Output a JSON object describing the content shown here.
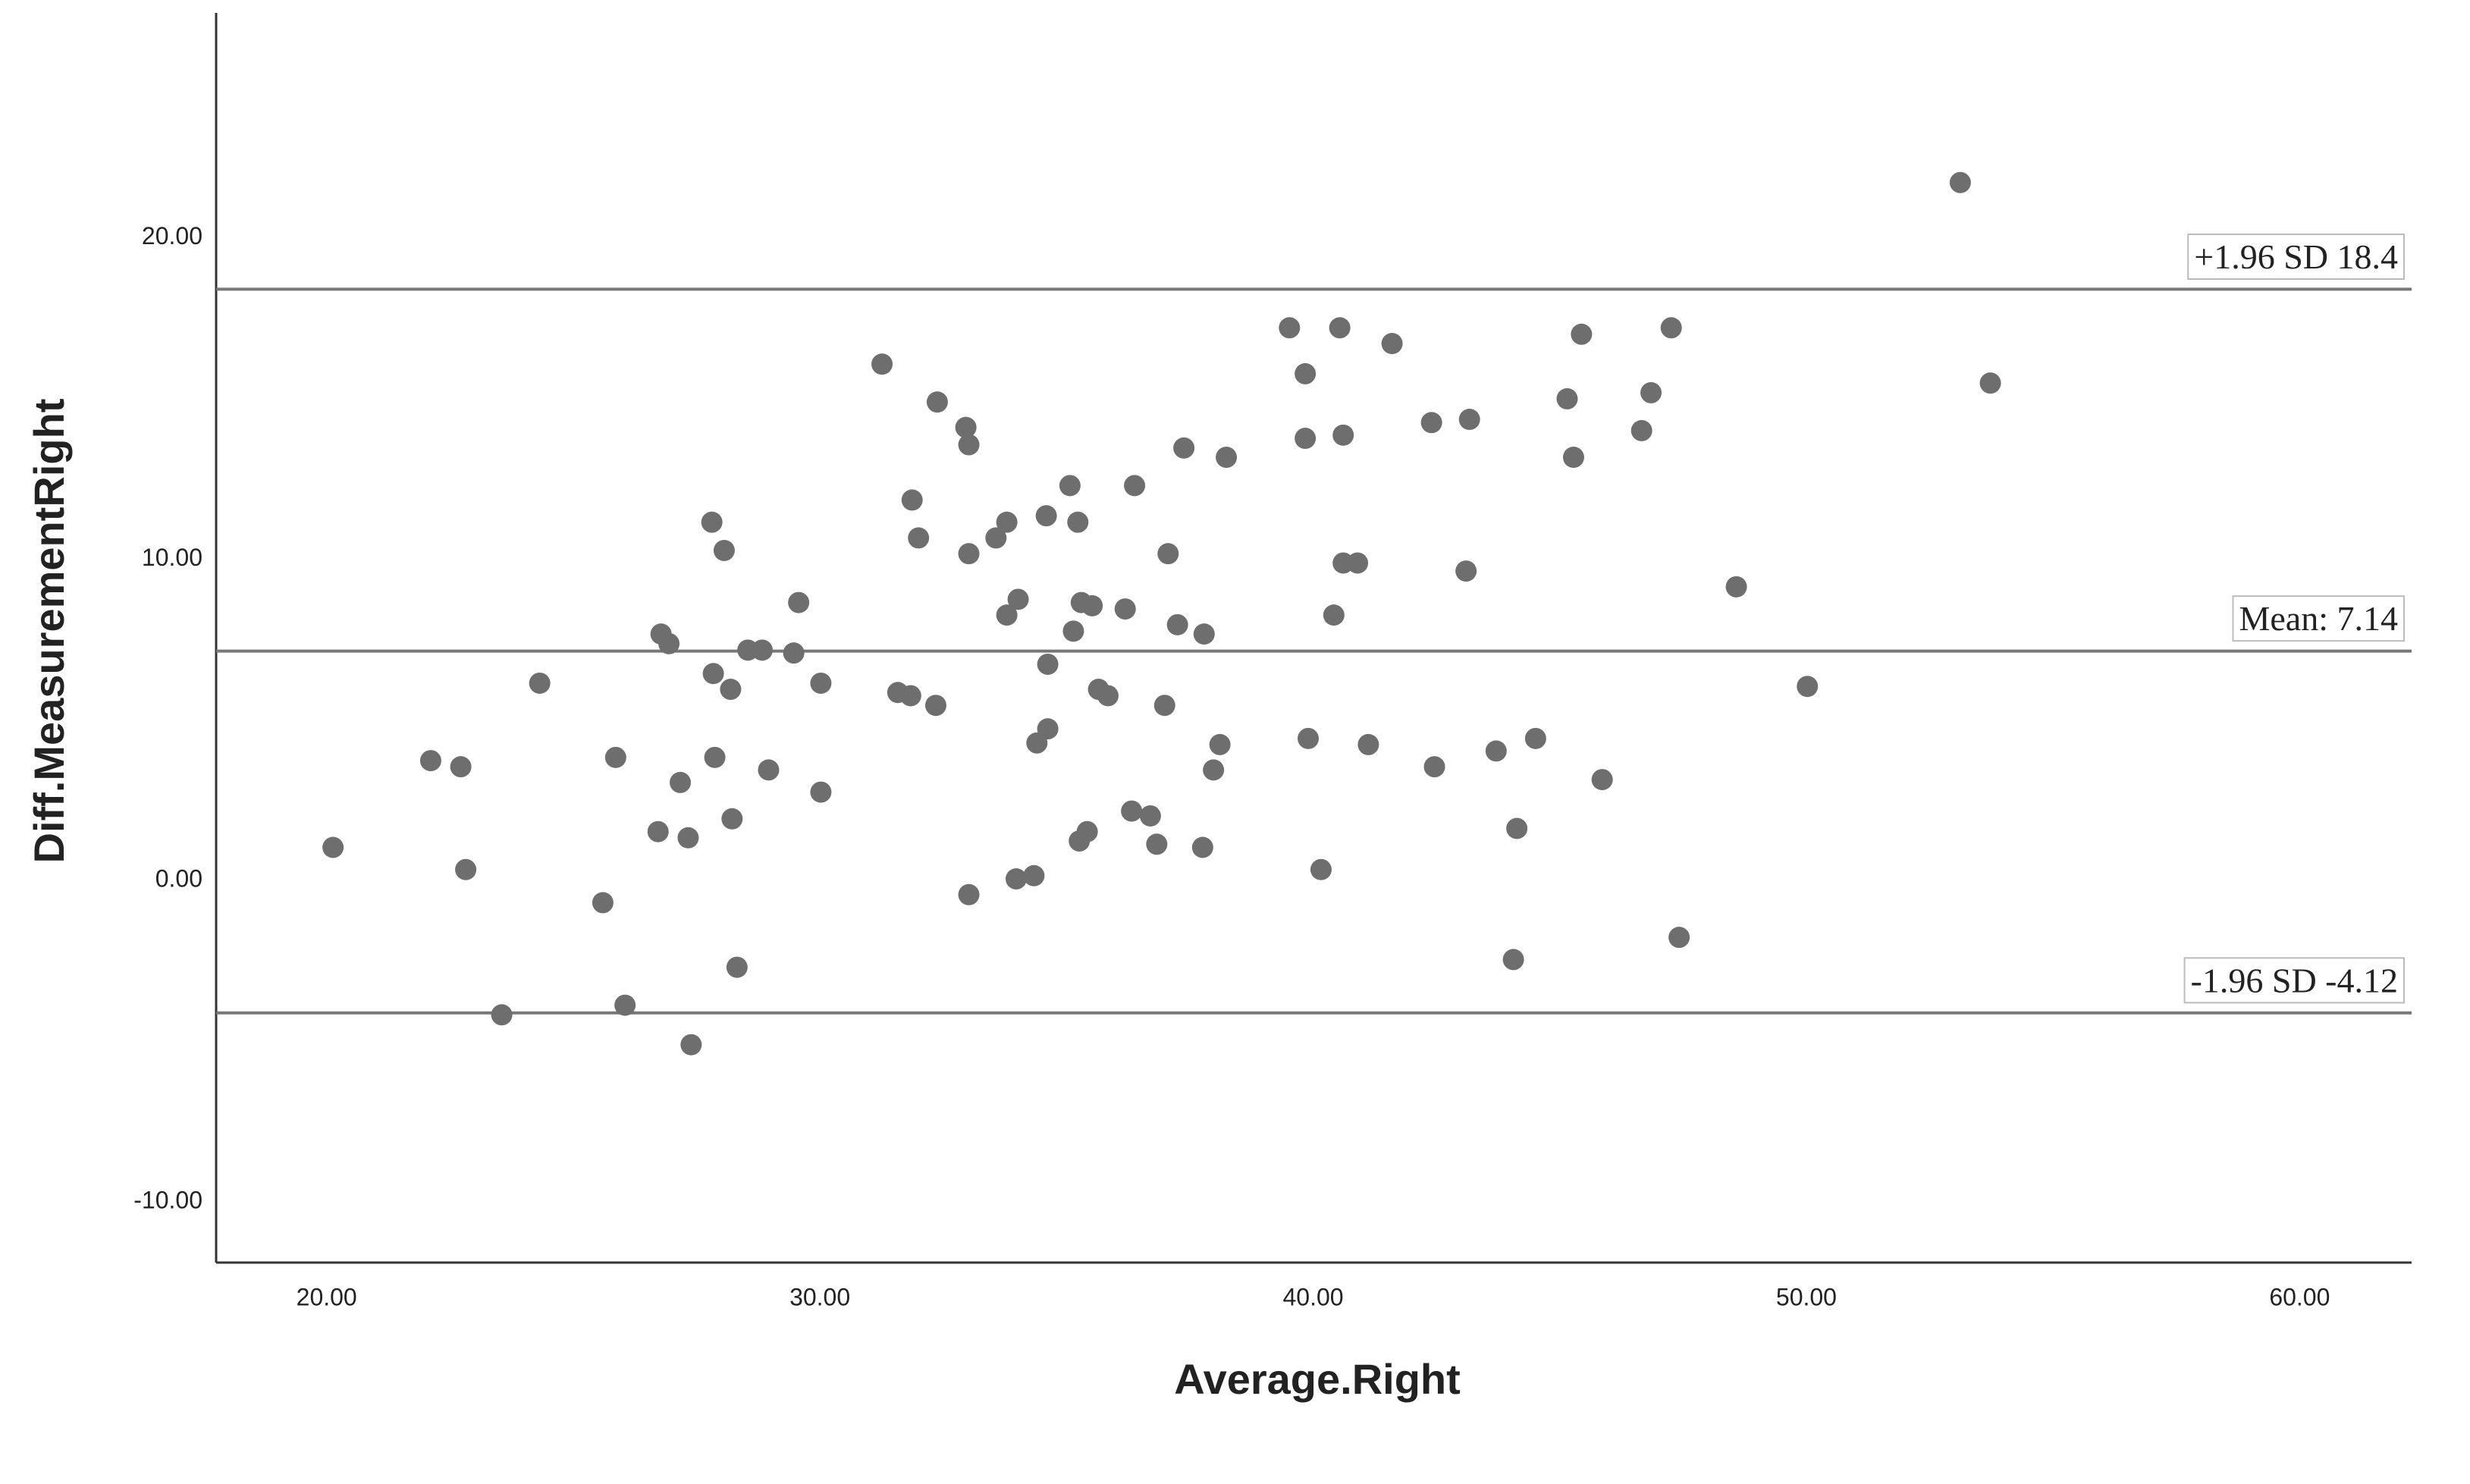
{
  "chart_data": {
    "type": "scatter",
    "xlabel": "Average.Right",
    "ylabel": "Diff.MeasurementRight",
    "color": "#6e6e6e",
    "line_color": "#777777",
    "grid": false,
    "xlim": [
      17.76,
      62.27
    ],
    "ylim": [
      -11.89,
      27.0
    ],
    "xticks": [
      {
        "value": 20,
        "label": "20.00"
      },
      {
        "value": 30,
        "label": "30.00"
      },
      {
        "value": 40,
        "label": "40.00"
      },
      {
        "value": 50,
        "label": "50.00"
      },
      {
        "value": 60,
        "label": "60.00"
      }
    ],
    "yticks": [
      {
        "value": -10,
        "label": "-10.00"
      },
      {
        "value": 0,
        "label": "0.00"
      },
      {
        "value": 10,
        "label": "10.00"
      },
      {
        "value": 20,
        "label": "20.00"
      }
    ],
    "reference_lines": [
      {
        "label": "+1.96 SD 18.4",
        "value": 18.4
      },
      {
        "label": "Mean: 7.14",
        "value": 7.14
      },
      {
        "label": "-1.96 SD -4.12",
        "value": -4.12
      }
    ],
    "x": [
      20.13,
      22.11,
      22.72,
      22.82,
      23.55,
      24.32,
      25.6,
      25.86,
      26.05,
      26.72,
      26.78,
      26.94,
      27.17,
      27.33,
      27.39,
      27.81,
      27.84,
      27.87,
      28.06,
      28.19,
      28.22,
      28.32,
      28.54,
      28.83,
      28.96,
      29.47,
      29.57,
      30.02,
      30.02,
      31.26,
      31.58,
      31.84,
      31.87,
      32.0,
      32.35,
      32.38,
      32.96,
      33.02,
      33.02,
      33.02,
      33.57,
      33.79,
      33.79,
      33.98,
      34.02,
      34.34,
      34.4,
      34.59,
      34.62,
      34.62,
      35.07,
      35.14,
      35.23,
      35.26,
      35.3,
      35.42,
      35.52,
      35.65,
      35.84,
      36.19,
      36.32,
      36.38,
      36.7,
      36.83,
      36.99,
      37.06,
      37.25,
      37.38,
      37.76,
      37.79,
      37.98,
      38.11,
      38.24,
      39.52,
      39.84,
      39.84,
      39.9,
      40.16,
      40.42,
      40.54,
      40.61,
      40.61,
      40.9,
      41.12,
      41.6,
      42.4,
      42.46,
      43.1,
      43.17,
      43.71,
      44.06,
      44.13,
      44.51,
      45.15,
      45.28,
      45.44,
      45.86,
      46.66,
      46.85,
      47.26,
      47.42,
      48.58,
      50.02,
      53.12,
      53.73
    ],
    "y": [
      1.03,
      3.73,
      3.54,
      0.34,
      -4.18,
      6.14,
      -0.69,
      3.83,
      -3.88,
      1.52,
      7.67,
      7.37,
      3.05,
      1.33,
      -5.11,
      11.15,
      6.44,
      3.83,
      10.27,
      5.95,
      1.92,
      -2.7,
      7.17,
      7.17,
      3.44,
      7.08,
      8.65,
      6.14,
      2.75,
      16.07,
      5.85,
      5.75,
      11.84,
      10.66,
      5.45,
      14.89,
      14.1,
      13.56,
      10.17,
      -0.44,
      10.66,
      11.15,
      8.26,
      0.05,
      8.75,
      0.15,
      4.28,
      11.35,
      6.73,
      4.72,
      12.29,
      7.76,
      11.15,
      1.23,
      8.65,
      1.52,
      8.55,
      5.95,
      5.75,
      8.45,
      2.16,
      12.29,
      2.01,
      1.13,
      5.45,
      10.17,
      7.96,
      13.46,
      1.03,
      7.67,
      3.44,
      4.23,
      13.17,
      17.2,
      15.77,
      13.76,
      4.42,
      0.34,
      8.26,
      17.2,
      13.86,
      9.88,
      9.88,
      4.23,
      16.71,
      14.25,
      3.54,
      9.63,
      14.35,
      4.03,
      -2.46,
      1.62,
      4.42,
      14.99,
      13.17,
      17.0,
      3.14,
      14.0,
      15.18,
      17.2,
      -1.77,
      9.14,
      6.04,
      21.72,
      15.48
    ]
  }
}
